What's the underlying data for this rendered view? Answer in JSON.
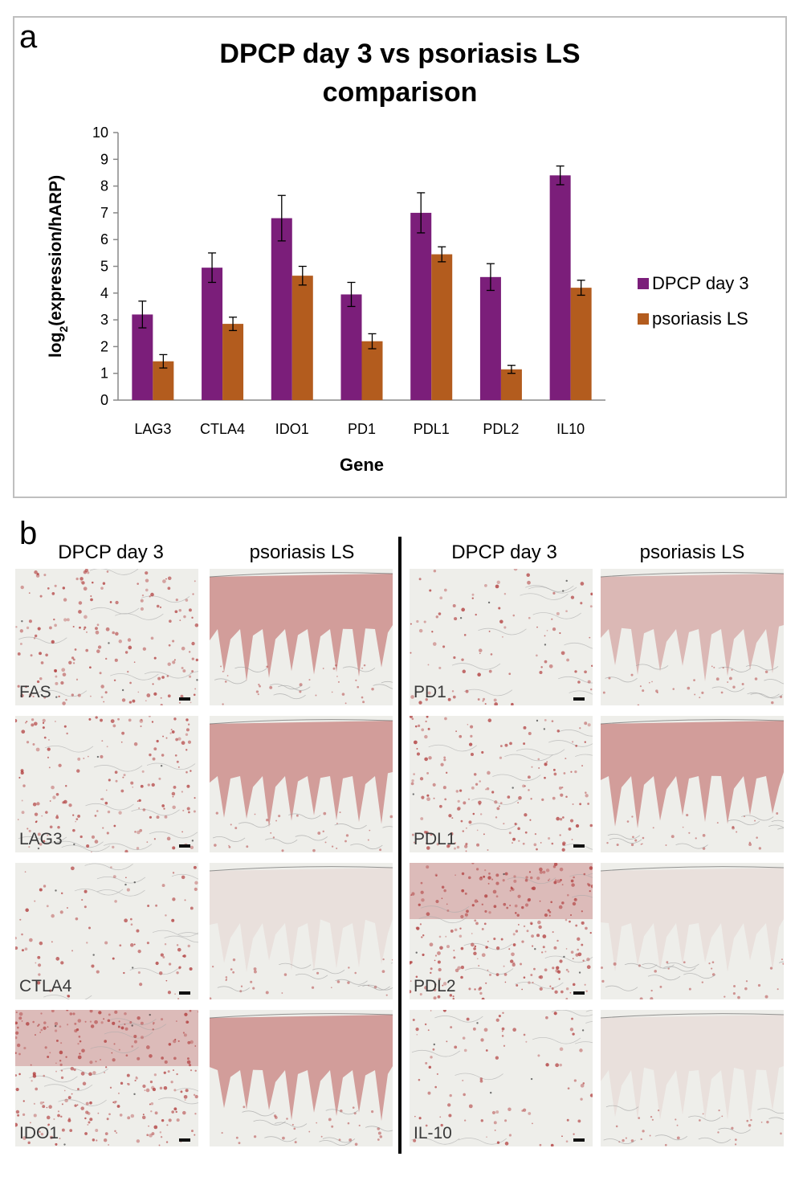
{
  "panel_a": {
    "letter": "a",
    "chart_data": {
      "type": "bar",
      "title": "DPCP day 3 vs psoriasis LS comparison",
      "title_lines": [
        "DPCP day 3 vs psoriasis LS",
        "comparison"
      ],
      "xlabel": "Gene",
      "ylabel": "log2(expression/hARP)",
      "ylabel_parts": {
        "prefix": "log",
        "subscript": "2",
        "suffix": "(expression/hARP)"
      },
      "ylim": [
        0,
        10
      ],
      "yticks": [
        0,
        1,
        2,
        3,
        4,
        5,
        6,
        7,
        8,
        9,
        10
      ],
      "categories": [
        "LAG3",
        "CTLA4",
        "IDO1",
        "PD1",
        "PDL1",
        "PDL2",
        "IL10"
      ],
      "series": [
        {
          "name": "DPCP day 3",
          "color": "#7b1e7a",
          "values": [
            3.2,
            4.95,
            6.8,
            3.95,
            7.0,
            4.6,
            8.4
          ],
          "errors": [
            0.5,
            0.55,
            0.85,
            0.45,
            0.75,
            0.5,
            0.35
          ]
        },
        {
          "name": "psoriasis LS",
          "color": "#b35c1e",
          "values": [
            1.45,
            2.85,
            4.65,
            2.2,
            5.45,
            1.15,
            4.2
          ],
          "errors": [
            0.25,
            0.25,
            0.35,
            0.28,
            0.28,
            0.15,
            0.28
          ]
        }
      ],
      "legend_position": "right",
      "grid": false
    }
  },
  "panel_b": {
    "letter": "b",
    "headers": [
      "DPCP day 3",
      "psoriasis LS",
      "DPCP day 3",
      "psoriasis LS"
    ],
    "left_labels": [
      "FAS",
      "LAG3",
      "CTLA4",
      "IDO1"
    ],
    "right_labels": [
      "PD1",
      "PDL1",
      "PDL2",
      "IL-10"
    ],
    "stain_color": "#b03a3a"
  }
}
